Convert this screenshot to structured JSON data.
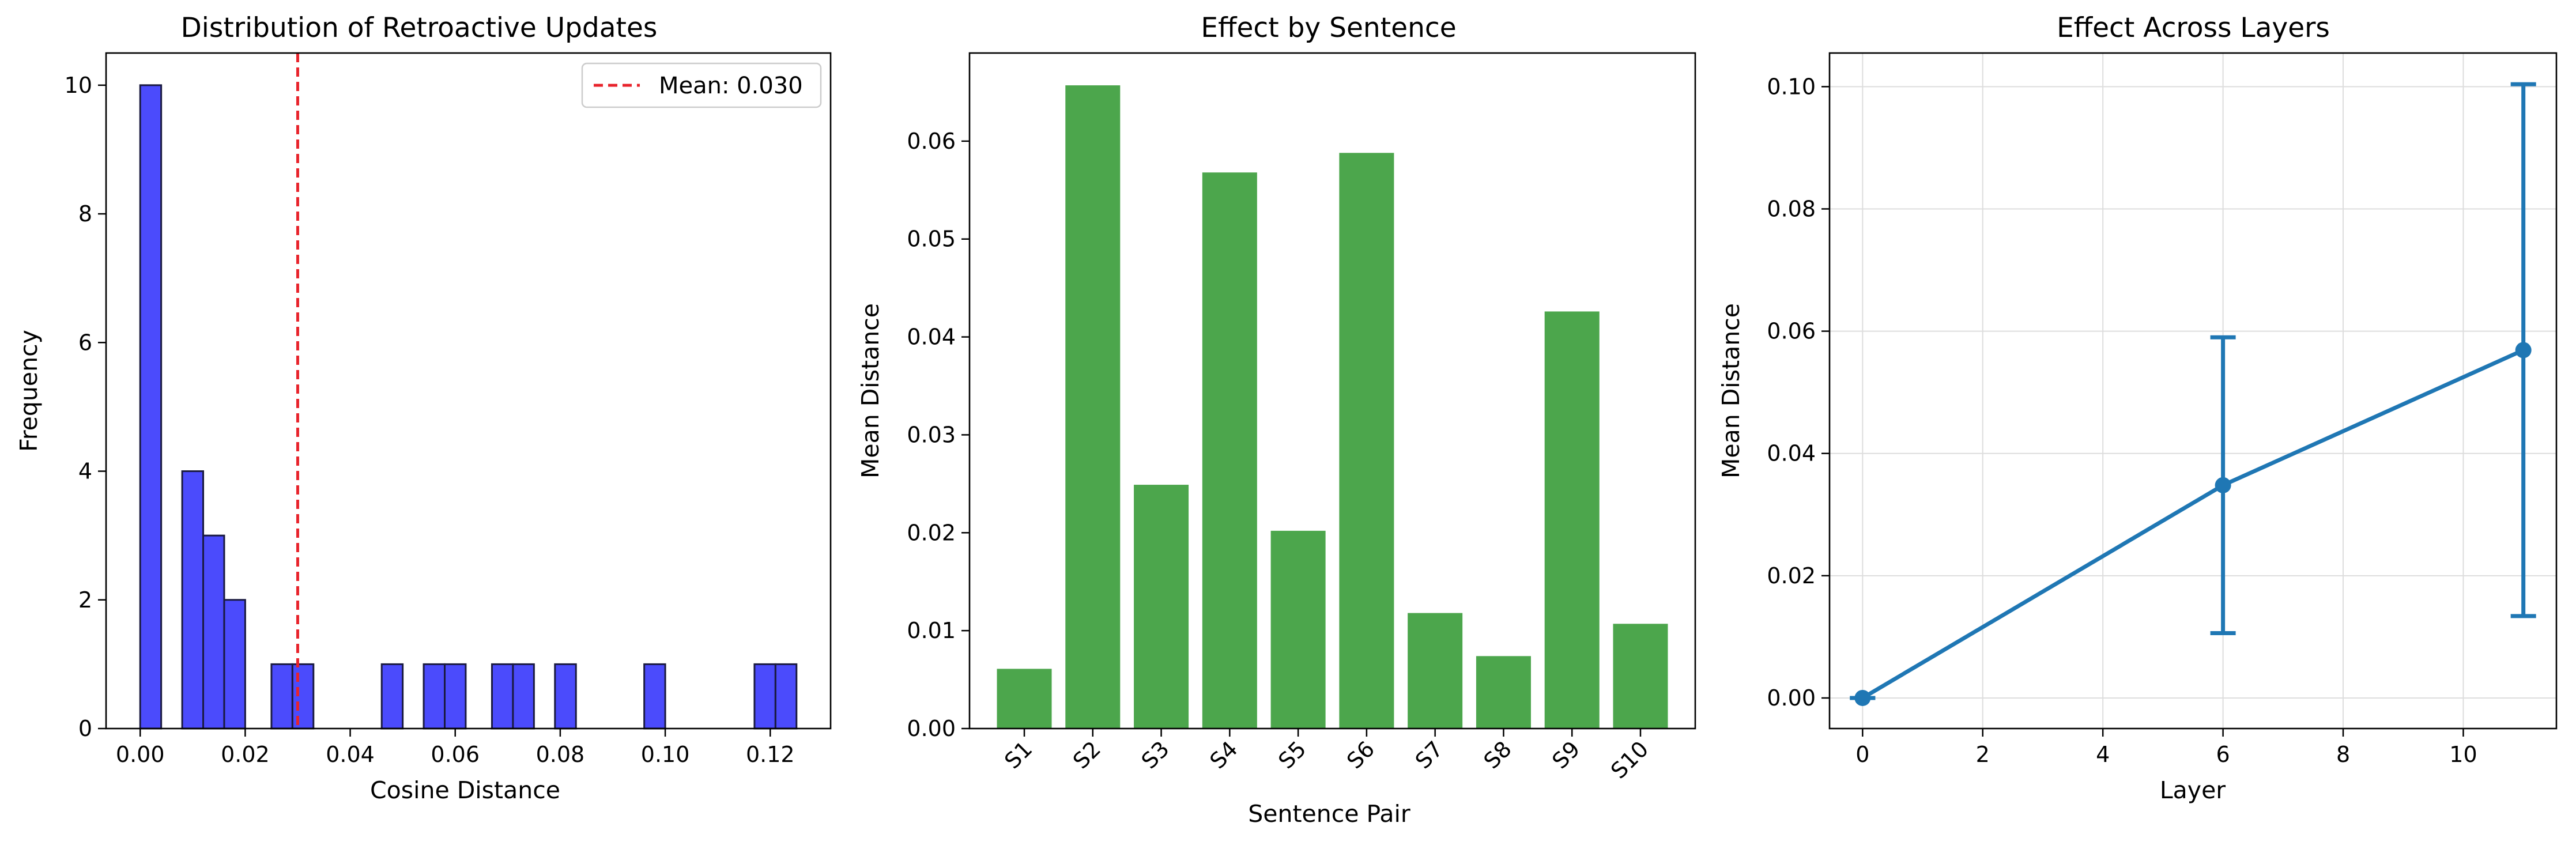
{
  "colors": {
    "hist_bar": "#4b4bfc",
    "hist_edge": "#1a1a40",
    "mean_line": "#e8232b",
    "bar": "#4ca64c",
    "line": "#1f77b4",
    "grid": "#dddddd"
  },
  "chart_data": [
    {
      "type": "bar",
      "subtype": "histogram",
      "title": "Distribution of Retroactive Updates",
      "xlabel": "Cosine Distance",
      "ylabel": "Frequency",
      "xlim": [
        -0.0065,
        0.1315
      ],
      "ylim": [
        0,
        10.5
      ],
      "xticks": [
        0.0,
        0.02,
        0.04,
        0.06,
        0.08,
        0.1,
        0.12
      ],
      "xtick_labels": [
        "0.00",
        "0.02",
        "0.04",
        "0.06",
        "0.08",
        "0.10",
        "0.12"
      ],
      "yticks": [
        0,
        2,
        4,
        6,
        8,
        10
      ],
      "ytick_labels": [
        "0",
        "2",
        "4",
        "6",
        "8",
        "10"
      ],
      "bins": [
        {
          "x0": 0.0,
          "x1": 0.004,
          "count": 10
        },
        {
          "x0": 0.008,
          "x1": 0.012,
          "count": 4
        },
        {
          "x0": 0.012,
          "x1": 0.016,
          "count": 3
        },
        {
          "x0": 0.016,
          "x1": 0.02,
          "count": 2
        },
        {
          "x0": 0.025,
          "x1": 0.029,
          "count": 1
        },
        {
          "x0": 0.029,
          "x1": 0.033,
          "count": 1
        },
        {
          "x0": 0.046,
          "x1": 0.05,
          "count": 1
        },
        {
          "x0": 0.054,
          "x1": 0.058,
          "count": 1
        },
        {
          "x0": 0.058,
          "x1": 0.062,
          "count": 1
        },
        {
          "x0": 0.067,
          "x1": 0.071,
          "count": 1
        },
        {
          "x0": 0.071,
          "x1": 0.075,
          "count": 1
        },
        {
          "x0": 0.079,
          "x1": 0.083,
          "count": 1
        },
        {
          "x0": 0.096,
          "x1": 0.1,
          "count": 1
        },
        {
          "x0": 0.117,
          "x1": 0.121,
          "count": 1
        },
        {
          "x0": 0.121,
          "x1": 0.125,
          "count": 1
        }
      ],
      "mean_line": {
        "x": 0.03,
        "label": "Mean: 0.030"
      },
      "legend": "top-right",
      "grid": false
    },
    {
      "type": "bar",
      "title": "Effect by Sentence",
      "xlabel": "Sentence Pair",
      "ylabel": "Mean Distance",
      "categories": [
        "S1",
        "S2",
        "S3",
        "S4",
        "S5",
        "S6",
        "S7",
        "S8",
        "S9",
        "S10"
      ],
      "values": [
        0.0061,
        0.0657,
        0.0249,
        0.0568,
        0.0202,
        0.0588,
        0.0118,
        0.0074,
        0.0426,
        0.0107
      ],
      "ylim": [
        0,
        0.069
      ],
      "yticks": [
        0,
        0.01,
        0.02,
        0.03,
        0.04,
        0.05,
        0.06
      ],
      "ytick_labels": [
        "0.00",
        "0.01",
        "0.02",
        "0.03",
        "0.04",
        "0.05",
        "0.06"
      ],
      "grid": false
    },
    {
      "type": "line",
      "title": "Effect Across Layers",
      "xlabel": "Layer",
      "ylabel": "Mean Distance",
      "x": [
        0,
        6,
        11
      ],
      "y": [
        0.0,
        0.0348,
        0.0569
      ],
      "error": [
        0.0,
        0.0242,
        0.0435
      ],
      "xlim": [
        -0.55,
        11.55
      ],
      "ylim": [
        -0.005,
        0.1055
      ],
      "xticks": [
        0,
        2,
        4,
        6,
        8,
        10
      ],
      "xtick_labels": [
        "0",
        "2",
        "4",
        "6",
        "8",
        "10"
      ],
      "yticks": [
        0.0,
        0.02,
        0.04,
        0.06,
        0.08,
        0.1
      ],
      "ytick_labels": [
        "0.00",
        "0.02",
        "0.04",
        "0.06",
        "0.08",
        "0.10"
      ],
      "grid": true
    }
  ]
}
